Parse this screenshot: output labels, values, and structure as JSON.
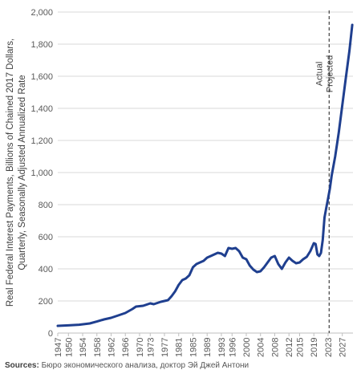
{
  "chart_data": {
    "type": "line",
    "title": "",
    "ylabel_lines": [
      "Real Federal Interest Payments, Billions of Chained 2017 Dollars,",
      "Quarterly, Seasonally Adjusted Annualized Rate"
    ],
    "xlabel": "",
    "ylim": [
      0,
      2000
    ],
    "yticks": [
      0,
      200,
      400,
      600,
      800,
      1000,
      1200,
      1400,
      1600,
      1800,
      2000
    ],
    "ytick_labels": [
      "0",
      "200",
      "400",
      "600",
      "800",
      "1,000",
      "1,200",
      "1,400",
      "1,600",
      "1,800",
      "2,000"
    ],
    "xlim": [
      1947,
      2030
    ],
    "xticks": [
      1947,
      1950,
      1954,
      1958,
      1962,
      1966,
      1970,
      1973,
      1977,
      1981,
      1985,
      1989,
      1993,
      1996,
      2000,
      2004,
      2008,
      2012,
      2015,
      2019,
      2023,
      2027
    ],
    "grid": "horizontal",
    "vline_year": 2023.3,
    "annotations": [
      "Actual",
      "Projected"
    ],
    "series": [
      {
        "name": "",
        "color": "#1f3f8f",
        "x": [
          1947,
          1950,
          1953,
          1956,
          1958,
          1960,
          1962,
          1964,
          1966,
          1968,
          1969,
          1971,
          1973,
          1974,
          1976,
          1978,
          1979,
          1980,
          1981,
          1982,
          1983,
          1984,
          1985,
          1986,
          1987,
          1988,
          1989,
          1990,
          1991,
          1992,
          1993,
          1994,
          1995,
          1996,
          1997,
          1998,
          1999,
          2000,
          2001,
          2002,
          2003,
          2004,
          2005,
          2006,
          2007,
          2008,
          2009,
          2010,
          2011,
          2012,
          2013,
          2014,
          2015,
          2016,
          2017,
          2018,
          2019,
          2019.5,
          2020,
          2020.5,
          2021,
          2021.5,
          2022,
          2022.5,
          2023,
          2023.5,
          2024,
          2025,
          2026,
          2027,
          2028,
          2029,
          2029.8
        ],
        "values": [
          45,
          48,
          52,
          60,
          72,
          85,
          95,
          110,
          125,
          150,
          165,
          170,
          185,
          180,
          195,
          205,
          230,
          260,
          300,
          330,
          340,
          360,
          410,
          430,
          440,
          450,
          470,
          480,
          490,
          500,
          495,
          480,
          530,
          525,
          530,
          510,
          470,
          460,
          420,
          395,
          380,
          385,
          410,
          440,
          470,
          480,
          430,
          400,
          440,
          470,
          450,
          435,
          440,
          460,
          475,
          510,
          560,
          555,
          490,
          480,
          500,
          580,
          720,
          780,
          840,
          900,
          980,
          1100,
          1250,
          1420,
          1590,
          1760,
          1920
        ]
      }
    ]
  },
  "source": {
    "lead": "Sources:",
    "text": "Бюро экономического анализа, доктор Эй Джей Антони"
  }
}
